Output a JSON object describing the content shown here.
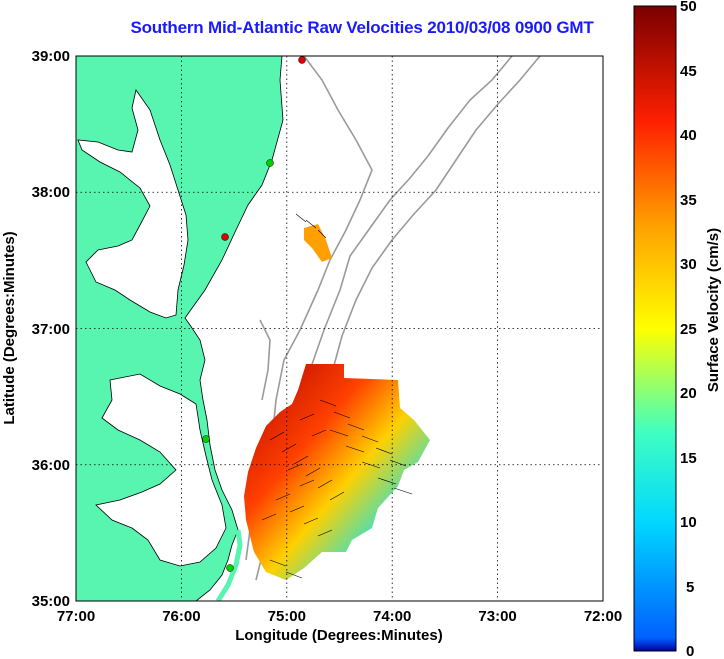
{
  "title": "Southern Mid-Atlantic Raw Velocities 2010/03/08 0900 GMT",
  "axes": {
    "xlabel": "Longitude (Degrees:Minutes)",
    "ylabel": "Latitude (Degrees:Minutes)",
    "xticks": [
      "77:00",
      "76:00",
      "75:00",
      "74:00",
      "73:00",
      "72:00"
    ],
    "yticks": [
      "39:00",
      "38:00",
      "37:00",
      "36:00",
      "35:00"
    ]
  },
  "colorbar": {
    "label": "Surface Velocity (cm/s)",
    "ticks": [
      "50",
      "45",
      "40",
      "35",
      "30",
      "25",
      "20",
      "15",
      "10",
      "5",
      "0"
    ],
    "range": [
      0,
      50
    ]
  },
  "colors": {
    "land": "#57f5b0",
    "coast": "#000000",
    "bathymetry": "#9a9a9a",
    "title": "#1a1aff",
    "station_green": "#00d000",
    "station_red": "#e00000"
  },
  "chart_data": {
    "type": "heatmap",
    "xlim": [
      -77,
      -72
    ],
    "ylim": [
      35,
      39
    ],
    "grid": true
  }
}
